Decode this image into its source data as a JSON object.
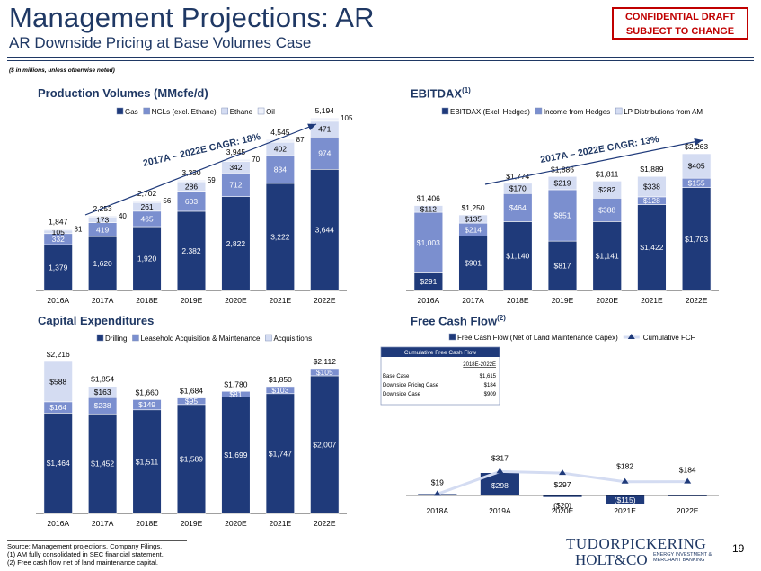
{
  "header": {
    "title": "Management Projections: AR",
    "subtitle": "AR Downside Pricing at Base Volumes Case",
    "confidential": [
      "CONFIDENTIAL DRAFT",
      "SUBJECT TO CHANGE"
    ],
    "note": "($ in millions, unless otherwise noted)"
  },
  "sections": {
    "production": "Production Volumes (MMcfe/d)",
    "ebitdax": "EBITDAX",
    "ebitdax_sup": "(1)",
    "capex": "Capital Expenditures",
    "fcf": "Free Cash Flow",
    "fcf_sup": "(2)"
  },
  "colors": {
    "navy": "#1f3a7a",
    "mid": "#7b8fcf",
    "light": "#d4dcf2",
    "lighter": "#eef1fa",
    "arrow": "#1f3a7a"
  },
  "footer": {
    "source": "Source: Management projections, Company Filings.",
    "n1": "(1)    AM fully consolidated in SEC financial statement.",
    "n2": "(2)    Free cash flow net of land maintenance capital.",
    "page": "19",
    "logo_top": "TUDORPICKERING",
    "logo_bottom": "HOLT&CO",
    "logo_tag": "ENERGY INVESTMENT & MERCHANT BANKING"
  },
  "chart_data": [
    {
      "type": "bar",
      "id": "production",
      "stacked": true,
      "title": "Production Volumes (MMcfe/d)",
      "categories": [
        "2016A",
        "2017A",
        "2018E",
        "2019E",
        "2020E",
        "2021E",
        "2022E"
      ],
      "series": [
        {
          "name": "Gas",
          "values": [
            1379,
            1620,
            1920,
            2382,
            2822,
            3222,
            3644
          ],
          "labels": [
            "1,379",
            "1,620",
            "1,920",
            "2,382",
            "2,822",
            "3,222",
            "3,644"
          ]
        },
        {
          "name": "NGLs (excl. Ethane)",
          "values": [
            332,
            419,
            465,
            603,
            712,
            834,
            974
          ],
          "labels": [
            "332",
            "419",
            "465",
            "603",
            "712",
            "834",
            "974"
          ]
        },
        {
          "name": "Ethane",
          "values": [
            105,
            173,
            261,
            286,
            342,
            402,
            471
          ],
          "labels": [
            "105",
            "173",
            "261",
            "286",
            "342",
            "402",
            "471"
          ]
        },
        {
          "name": "Oil",
          "values": [
            31,
            40,
            56,
            59,
            70,
            87,
            105
          ],
          "labels": [
            "31",
            "40",
            "56",
            "59",
            "70",
            "87",
            "105"
          ]
        }
      ],
      "totals": [
        "1,847",
        "2,253",
        "2,702",
        "3,330",
        "3,945",
        "4,545",
        "5,194"
      ],
      "total_values": [
        1847,
        2253,
        2702,
        3330,
        3945,
        4545,
        5194
      ],
      "legend": "top",
      "annotation": "2017A – 2022E CAGR: 18%"
    },
    {
      "type": "bar",
      "id": "ebitdax",
      "stacked": true,
      "categories": [
        "2016A",
        "2017A",
        "2018E",
        "2019E",
        "2020E",
        "2021E",
        "2022E"
      ],
      "series": [
        {
          "name": "EBITDAX (Excl. Hedges)",
          "values": [
            291,
            901,
            1140,
            817,
            1141,
            1422,
            1703
          ],
          "labels": [
            "$291",
            "$901",
            "$1,140",
            "$817",
            "$1,141",
            "$1,422",
            "$1,703"
          ]
        },
        {
          "name": "Income from Hedges",
          "values": [
            1003,
            214,
            464,
            851,
            388,
            128,
            155
          ],
          "labels": [
            "$1,003",
            "$214",
            "$464",
            "$851",
            "$388",
            "$128",
            "$155"
          ]
        },
        {
          "name": "LP Distributions from AM",
          "values": [
            112,
            135,
            170,
            219,
            282,
            338,
            405
          ],
          "labels": [
            "$112",
            "$135",
            "$170",
            "$219",
            "$282",
            "$338",
            "$405"
          ]
        }
      ],
      "totals": [
        "$1,406",
        "$1,250",
        "$1,774",
        "$1,886",
        "$1,811",
        "$1,889",
        "$2,263"
      ],
      "total_values": [
        1406,
        1250,
        1774,
        1886,
        1811,
        1889,
        2263
      ],
      "legend": "top",
      "annotation": "2017A – 2022E CAGR: 13%"
    },
    {
      "type": "bar",
      "id": "capex",
      "stacked": true,
      "categories": [
        "2016A",
        "2017A",
        "2018E",
        "2019E",
        "2020E",
        "2021E",
        "2022E"
      ],
      "series": [
        {
          "name": "Drilling",
          "values": [
            1464,
            1452,
            1511,
            1589,
            1699,
            1747,
            2007
          ],
          "labels": [
            "$1,464",
            "$1,452",
            "$1,511",
            "$1,589",
            "$1,699",
            "$1,747",
            "$2,007"
          ]
        },
        {
          "name": "Leasehold Acquisition & Maintenance",
          "values": [
            164,
            238,
            149,
            95,
            81,
            103,
            105
          ],
          "labels": [
            "$164",
            "$238",
            "$149",
            "$95",
            "$81",
            "$103",
            "$105"
          ]
        },
        {
          "name": "Acquisitions",
          "values": [
            588,
            163,
            0,
            0,
            0,
            0,
            0
          ],
          "labels": [
            "$588",
            "$163",
            "",
            "",
            "",
            "",
            ""
          ]
        }
      ],
      "totals": [
        "$2,216",
        "$1,854",
        "$1,660",
        "$1,684",
        "$1,780",
        "$1,850",
        "$2,112"
      ],
      "total_values": [
        2216,
        1854,
        1660,
        1684,
        1780,
        1850,
        2112
      ],
      "legend": "top"
    },
    {
      "type": "bar",
      "id": "fcf",
      "categories": [
        "2018A",
        "2019A",
        "2020E",
        "2021E",
        "2022E"
      ],
      "series": [
        {
          "name": "Free Cash Flow (Net of Land Maintenance Capex)",
          "values": [
            19,
            298,
            -20,
            -115,
            2
          ],
          "labels": [
            "$19",
            "$298",
            "($20)",
            "($115)",
            ""
          ]
        },
        {
          "name": "Cumulative FCF",
          "type": "line",
          "values": [
            19,
            317,
            297,
            182,
            184
          ],
          "labels": [
            "$19",
            "$317",
            "$297",
            "$182",
            "$184"
          ]
        }
      ],
      "table": {
        "title": "Cumulative Free Cash Flow",
        "col": "2018E-2022E",
        "rows": [
          {
            "label": "Base Case",
            "value": "$1,615"
          },
          {
            "label": "Downside Pricing Case",
            "value": "$184"
          },
          {
            "label": "Downside Case",
            "value": "$909"
          }
        ]
      },
      "legend": "top"
    }
  ]
}
